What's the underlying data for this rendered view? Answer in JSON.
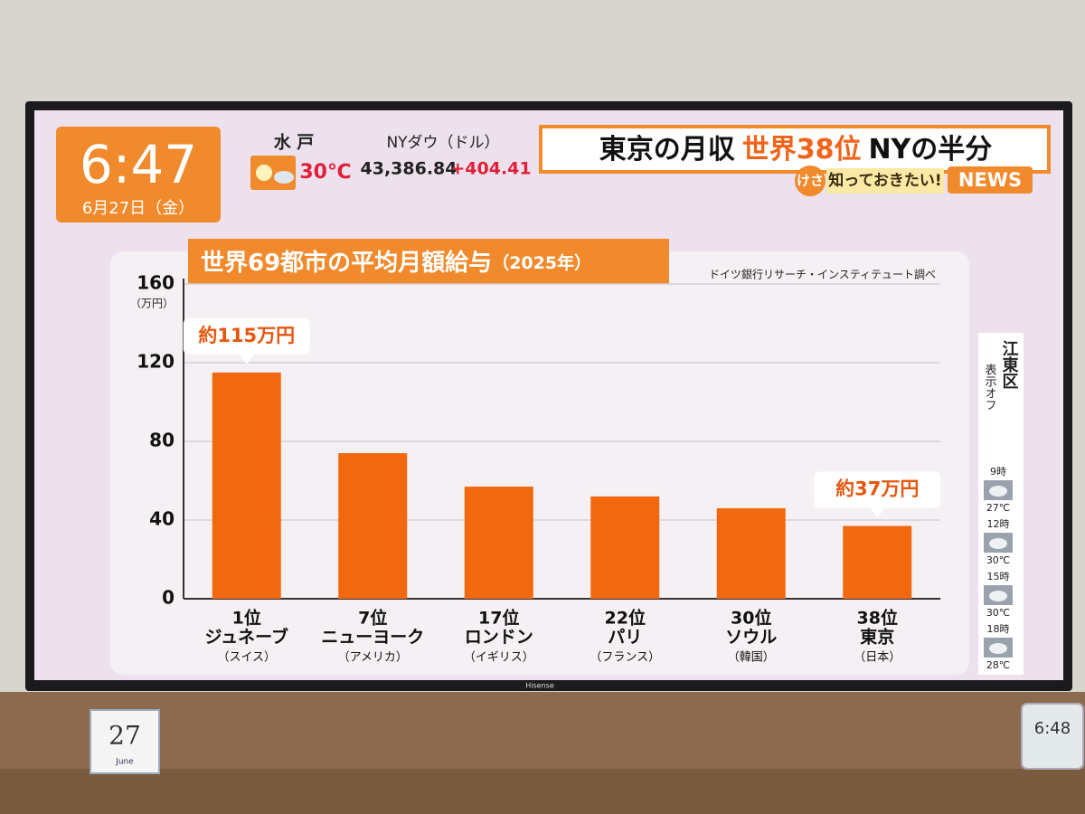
{
  "broadcast": {
    "clock": "6:47",
    "date": "6月27日（金）",
    "location": "水 戸",
    "temperature": "30℃",
    "dow_label": "NYダウ（ドル）",
    "dow_value": "43,386.84",
    "dow_change": "+404.41",
    "headline": [
      "東京の月収",
      "世界38位",
      "NYの半分"
    ],
    "program": [
      "けさ",
      "知っておきたい!",
      "NEWS"
    ]
  },
  "weather_panel": {
    "area": "江東区",
    "note": "表示オフ",
    "forecast": [
      {
        "time": "9時",
        "temp": "27℃"
      },
      {
        "time": "12時",
        "temp": "30℃"
      },
      {
        "time": "15時",
        "temp": "30℃"
      },
      {
        "time": "18時",
        "temp": "28℃"
      }
    ]
  },
  "room": {
    "tv_brand": "Hisense",
    "calendar_day": "27",
    "calendar_month": "June",
    "desk_clock": "6:48"
  },
  "chart_data": {
    "type": "bar",
    "title": "世界69都市の平均月額給与",
    "subtitle": "（2025年）",
    "source": "ドイツ銀行リサーチ・インスティテュート調べ",
    "y_unit": "（万円）",
    "ranks": [
      "1位",
      "7位",
      "17位",
      "22位",
      "30位",
      "38位"
    ],
    "categories": [
      "ジュネーブ",
      "ニューヨーク",
      "ロンドン",
      "パリ",
      "ソウル",
      "東京"
    ],
    "countries": [
      "（スイス）",
      "（アメリカ）",
      "（イギリス）",
      "（フランス）",
      "（韓国）",
      "（日本）"
    ],
    "values": [
      115,
      74,
      57,
      52,
      46,
      37
    ],
    "value_labels": [
      "約115万円",
      null,
      null,
      null,
      null,
      "約37万円"
    ],
    "color": "#f2680f",
    "ylim": [
      0,
      160
    ],
    "yticks": [
      0,
      40,
      80,
      120,
      160
    ],
    "grid": true
  }
}
